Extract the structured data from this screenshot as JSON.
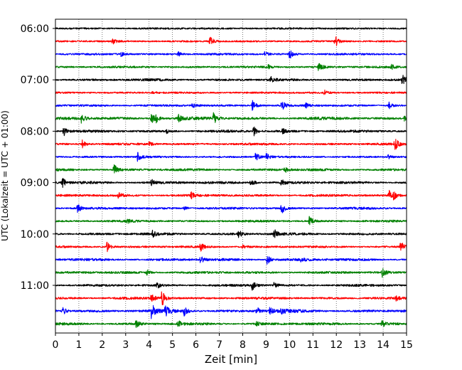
{
  "chart_data": {
    "type": "line",
    "title": "",
    "xlabel": "Zeit  [min]",
    "ylabel": "UTC (Lokalzeit = UTC + 01:00)",
    "xlim": [
      0,
      15
    ],
    "x_ticks": [
      "0",
      "1",
      "2",
      "3",
      "4",
      "5",
      "6",
      "7",
      "8",
      "9",
      "10",
      "11",
      "12",
      "13",
      "14",
      "15"
    ],
    "y_ticks": [
      "06:00",
      "07:00",
      "08:00",
      "09:00",
      "10:00",
      "11:00"
    ],
    "trace_start": "06:00",
    "trace_interval_min": 15,
    "grid": "vertical dotted lines at each minute",
    "colors": [
      "#000000",
      "#ff0000",
      "#0000ff",
      "#008000"
    ],
    "traces": [
      {
        "start": "06:00",
        "color": "#000000",
        "noise": 0.4,
        "events": []
      },
      {
        "start": "06:15",
        "color": "#ff0000",
        "noise": 0.3,
        "events": [
          {
            "t": 2.45,
            "amp": 4
          },
          {
            "t": 6.6,
            "amp": 7
          },
          {
            "t": 11.95,
            "amp": 9
          }
        ]
      },
      {
        "start": "06:30",
        "color": "#0000ff",
        "noise": 0.5,
        "events": [
          {
            "t": 2.8,
            "amp": 3
          },
          {
            "t": 5.25,
            "amp": 3
          },
          {
            "t": 8.95,
            "amp": 4
          },
          {
            "t": 10.0,
            "amp": 7
          }
        ]
      },
      {
        "start": "06:45",
        "color": "#008000",
        "noise": 0.6,
        "events": [
          {
            "t": 9.1,
            "amp": 3
          },
          {
            "t": 11.25,
            "amp": 8
          },
          {
            "t": 14.35,
            "amp": 3
          }
        ]
      },
      {
        "start": "07:00",
        "color": "#000000",
        "noise": 0.9,
        "events": [
          {
            "t": 9.2,
            "amp": 4
          },
          {
            "t": 14.8,
            "amp": 9
          }
        ]
      },
      {
        "start": "07:15",
        "color": "#ff0000",
        "noise": 0.4,
        "events": [
          {
            "t": 4.15,
            "amp": 2
          },
          {
            "t": 11.5,
            "amp": 3
          }
        ]
      },
      {
        "start": "07:30",
        "color": "#0000ff",
        "noise": 0.6,
        "events": [
          {
            "t": 5.85,
            "amp": 3
          },
          {
            "t": 8.4,
            "amp": 9
          },
          {
            "t": 9.65,
            "amp": 9
          },
          {
            "t": 10.7,
            "amp": 3
          },
          {
            "t": 14.25,
            "amp": 5
          }
        ]
      },
      {
        "start": "07:45",
        "color": "#008000",
        "noise": 1.4,
        "events": [
          {
            "t": 1.1,
            "amp": 7
          },
          {
            "t": 4.1,
            "amp": 8
          },
          {
            "t": 4.3,
            "amp": 6
          },
          {
            "t": 5.25,
            "amp": 5
          },
          {
            "t": 6.75,
            "amp": 9
          },
          {
            "t": 14.9,
            "amp": 3
          }
        ]
      },
      {
        "start": "08:00",
        "color": "#000000",
        "noise": 1.0,
        "events": [
          {
            "t": 0.35,
            "amp": 7
          },
          {
            "t": 4.75,
            "amp": 3
          },
          {
            "t": 8.45,
            "amp": 8
          },
          {
            "t": 9.7,
            "amp": 4
          }
        ]
      },
      {
        "start": "08:15",
        "color": "#ff0000",
        "noise": 0.7,
        "events": [
          {
            "t": 1.15,
            "amp": 6
          },
          {
            "t": 4.0,
            "amp": 3
          },
          {
            "t": 14.5,
            "amp": 9
          }
        ]
      },
      {
        "start": "08:30",
        "color": "#0000ff",
        "noise": 0.5,
        "events": [
          {
            "t": 3.5,
            "amp": 7
          },
          {
            "t": 8.55,
            "amp": 6
          },
          {
            "t": 9.0,
            "amp": 5
          },
          {
            "t": 14.2,
            "amp": 3
          }
        ]
      },
      {
        "start": "08:45",
        "color": "#008000",
        "noise": 0.9,
        "events": [
          {
            "t": 2.5,
            "amp": 8
          },
          {
            "t": 9.8,
            "amp": 4
          }
        ]
      },
      {
        "start": "09:00",
        "color": "#000000",
        "noise": 1.2,
        "events": [
          {
            "t": 0.3,
            "amp": 7
          },
          {
            "t": 4.1,
            "amp": 4
          },
          {
            "t": 8.35,
            "amp": 7
          },
          {
            "t": 9.65,
            "amp": 4
          }
        ]
      },
      {
        "start": "09:15",
        "color": "#ff0000",
        "noise": 0.8,
        "events": [
          {
            "t": 2.7,
            "amp": 5
          },
          {
            "t": 5.8,
            "amp": 4
          },
          {
            "t": 14.25,
            "amp": 7
          },
          {
            "t": 14.45,
            "amp": 5
          }
        ]
      },
      {
        "start": "09:30",
        "color": "#0000ff",
        "noise": 0.8,
        "events": [
          {
            "t": 0.95,
            "amp": 6
          },
          {
            "t": 5.5,
            "amp": 3
          },
          {
            "t": 9.65,
            "amp": 8
          }
        ]
      },
      {
        "start": "09:45",
        "color": "#008000",
        "noise": 0.7,
        "events": [
          {
            "t": 3.05,
            "amp": 3
          },
          {
            "t": 10.85,
            "amp": 7
          }
        ]
      },
      {
        "start": "10:00",
        "color": "#000000",
        "noise": 1.0,
        "events": [
          {
            "t": 4.15,
            "amp": 4
          },
          {
            "t": 7.8,
            "amp": 7
          },
          {
            "t": 9.35,
            "amp": 6
          }
        ]
      },
      {
        "start": "10:15",
        "color": "#ff0000",
        "noise": 0.6,
        "events": [
          {
            "t": 2.2,
            "amp": 7
          },
          {
            "t": 6.2,
            "amp": 6
          },
          {
            "t": 8.0,
            "amp": 3
          },
          {
            "t": 14.75,
            "amp": 8
          }
        ]
      },
      {
        "start": "10:30",
        "color": "#0000ff",
        "noise": 1.1,
        "events": [
          {
            "t": 6.2,
            "amp": 5
          },
          {
            "t": 9.05,
            "amp": 7
          },
          {
            "t": 10.5,
            "amp": 3
          }
        ]
      },
      {
        "start": "10:45",
        "color": "#008000",
        "noise": 0.9,
        "events": [
          {
            "t": 3.9,
            "amp": 4
          },
          {
            "t": 13.95,
            "amp": 7
          }
        ]
      },
      {
        "start": "11:00",
        "color": "#000000",
        "noise": 0.8,
        "events": [
          {
            "t": 4.35,
            "amp": 4
          },
          {
            "t": 8.4,
            "amp": 7
          },
          {
            "t": 9.35,
            "amp": 5
          }
        ]
      },
      {
        "start": "11:15",
        "color": "#ff0000",
        "noise": 0.9,
        "events": [
          {
            "t": 4.1,
            "amp": 7
          },
          {
            "t": 4.55,
            "amp": 12
          },
          {
            "t": 14.55,
            "amp": 3
          }
        ]
      },
      {
        "start": "11:30",
        "color": "#0000ff",
        "noise": 1.5,
        "events": [
          {
            "t": 0.3,
            "amp": 6
          },
          {
            "t": 4.1,
            "amp": 11
          },
          {
            "t": 4.7,
            "amp": 7
          },
          {
            "t": 5.5,
            "amp": 6
          },
          {
            "t": 8.6,
            "amp": 6
          },
          {
            "t": 9.15,
            "amp": 5
          },
          {
            "t": 9.65,
            "amp": 5
          }
        ]
      },
      {
        "start": "11:45",
        "color": "#008000",
        "noise": 1.0,
        "events": [
          {
            "t": 3.45,
            "amp": 6
          },
          {
            "t": 5.25,
            "amp": 4
          },
          {
            "t": 8.6,
            "amp": 3
          },
          {
            "t": 13.95,
            "amp": 5
          }
        ]
      }
    ]
  }
}
